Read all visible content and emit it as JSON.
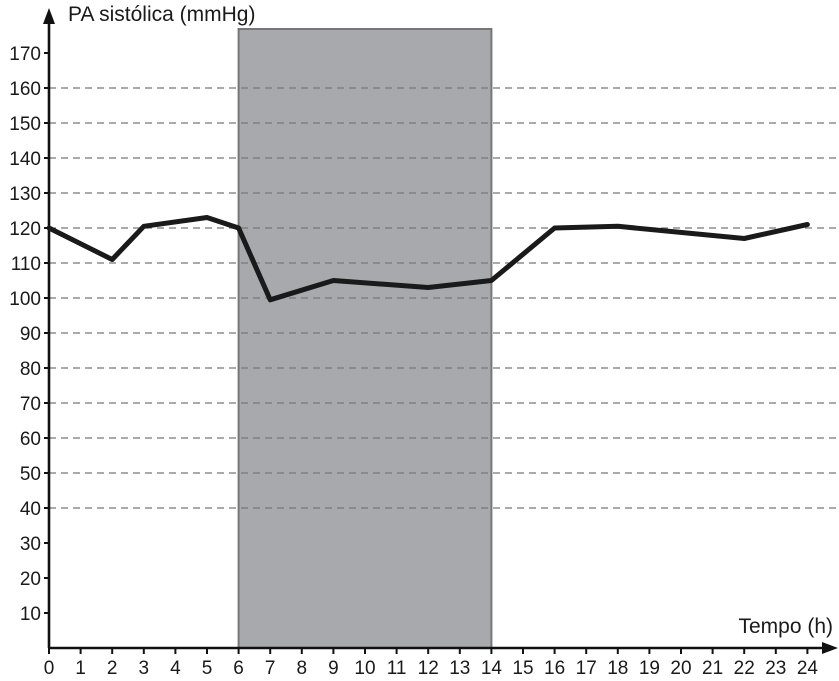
{
  "chart_data": {
    "type": "line",
    "ylabel": "PA sistólica (mmHg)",
    "xlabel": "Tempo (h)",
    "xlim": [
      0,
      24
    ],
    "ylim": [
      0,
      170
    ],
    "x_ticks": [
      0,
      1,
      2,
      3,
      4,
      5,
      6,
      7,
      8,
      9,
      10,
      11,
      12,
      13,
      14,
      15,
      16,
      17,
      18,
      19,
      20,
      21,
      22,
      23,
      24
    ],
    "y_ticks": [
      10,
      20,
      30,
      40,
      50,
      60,
      70,
      80,
      90,
      100,
      110,
      120,
      130,
      140,
      150,
      160,
      170
    ],
    "grid": "dashed horizontal lines at 40 to 160",
    "shaded_region": {
      "x_start": 6,
      "x_end": 14,
      "color": "#a7a9ac",
      "border": "#777777"
    },
    "series": [
      {
        "color": "#1a1a1a",
        "x": [
          0,
          2,
          3,
          5,
          6,
          7,
          9,
          12,
          14,
          16,
          18,
          22,
          24
        ],
        "y": [
          120,
          111,
          120.5,
          123,
          120,
          99.5,
          105,
          103,
          105,
          120,
          120.5,
          117,
          121
        ]
      }
    ]
  }
}
